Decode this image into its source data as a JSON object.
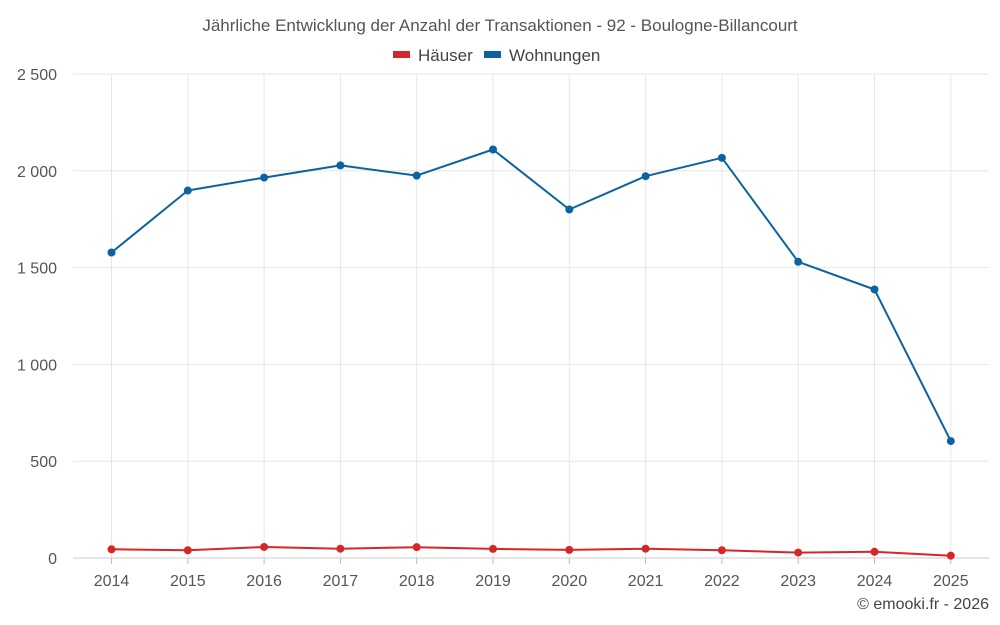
{
  "chart_data": {
    "type": "line",
    "title": "Jährliche Entwicklung der Anzahl der Transaktionen - 92 - Boulogne-Billancourt",
    "categories": [
      "2014",
      "2015",
      "2016",
      "2017",
      "2018",
      "2019",
      "2020",
      "2021",
      "2022",
      "2023",
      "2024",
      "2025"
    ],
    "series": [
      {
        "name": "Häuser",
        "color": "#d62728",
        "values": [
          45,
          40,
          57,
          48,
          56,
          47,
          42,
          48,
          40,
          28,
          32,
          12
        ]
      },
      {
        "name": "Wohnungen",
        "color": "#0d63a0",
        "values": [
          1578,
          1898,
          1965,
          2028,
          1975,
          2110,
          1800,
          1972,
          2067,
          1530,
          1387,
          604
        ]
      }
    ],
    "ylim": [
      0,
      2500
    ],
    "yticks": [
      0,
      500,
      1000,
      1500,
      2000,
      2500
    ],
    "ytick_labels": [
      "0",
      "500",
      "1 000",
      "1 500",
      "2 000",
      "2 500"
    ],
    "grid": true,
    "legend_position": "top-center"
  },
  "credit": "© emooki.fr - 2026"
}
